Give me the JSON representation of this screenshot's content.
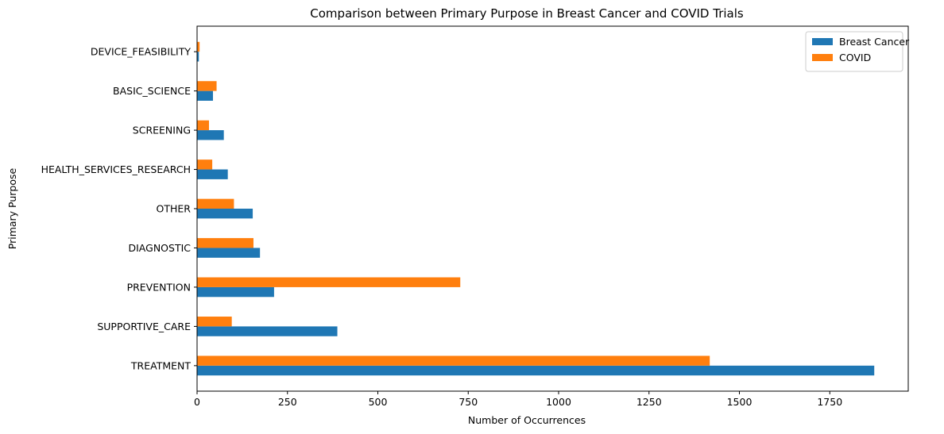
{
  "chart_data": {
    "type": "bar",
    "orientation": "horizontal",
    "title": "Comparison between Primary Purpose in Breast Cancer and COVID Trials",
    "xlabel": "Number of Occurrences",
    "ylabel": "Primary Purpose",
    "categories": [
      "TREATMENT",
      "SUPPORTIVE_CARE",
      "PREVENTION",
      "DIAGNOSTIC",
      "OTHER",
      "HEALTH_SERVICES_RESEARCH",
      "SCREENING",
      "BASIC_SCIENCE",
      "DEVICE_FEASIBILITY"
    ],
    "series": [
      {
        "name": "Breast Cancer",
        "color": "#1f77b4",
        "values": [
          1873,
          388,
          213,
          174,
          154,
          85,
          74,
          44,
          5
        ]
      },
      {
        "name": "COVID",
        "color": "#ff7f0e",
        "values": [
          1418,
          96,
          728,
          156,
          102,
          42,
          33,
          54,
          7
        ]
      }
    ],
    "xlim": [
      0,
      1967
    ],
    "xticks": [
      0,
      250,
      500,
      750,
      1000,
      1250,
      1500,
      1750
    ],
    "grid": false,
    "legend_position": "top-right"
  }
}
